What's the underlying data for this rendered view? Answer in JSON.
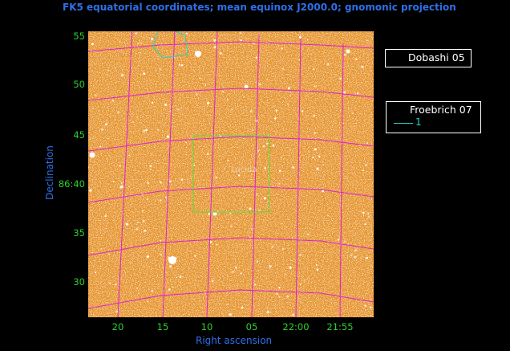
{
  "title": "FK5 equatorial coordinates; mean equinox J2000.0; gnomonic projection",
  "axes": {
    "xlabel": "Right ascension",
    "ylabel": "Declination",
    "yticks": [
      "55",
      "50",
      "45",
      "86:40",
      "35",
      "30"
    ],
    "xticks": [
      "20",
      "15",
      "10",
      "05",
      "22:00",
      "21:55"
    ]
  },
  "legend": {
    "dobashi": "Dobashi 05",
    "froebrich": "Froebrich 07",
    "froebrich_item": "1"
  },
  "annotation": "Lucida",
  "colors": {
    "background": "#000000",
    "sky": "#e8922e",
    "grid": "#e020d8",
    "tick_text": "#2fd02f",
    "title_text": "#2f6fe8",
    "box": "#56e03a",
    "region": "#22d7c8"
  }
}
